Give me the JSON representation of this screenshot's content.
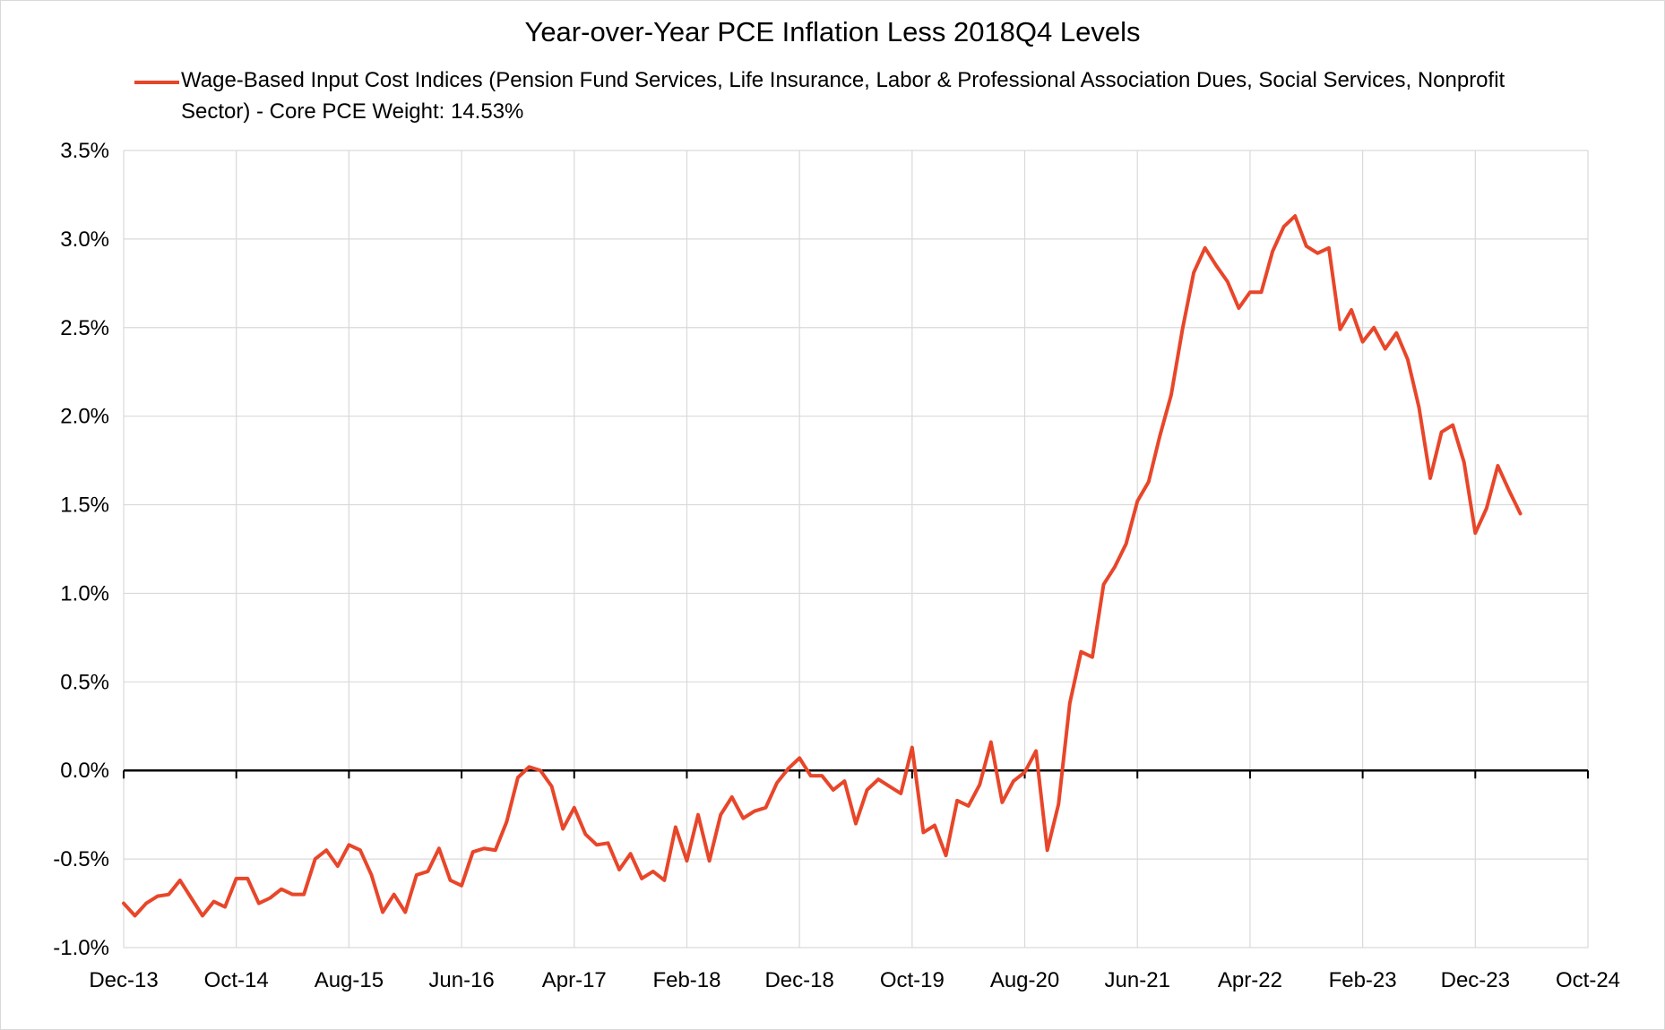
{
  "chart_data": {
    "type": "line",
    "title": "Year-over-Year PCE Inflation Less 2018Q4 Levels",
    "xlabel": "",
    "ylabel": "",
    "y_tick_labels": [
      "-1.0%",
      "-0.5%",
      "0.0%",
      "0.5%",
      "1.0%",
      "1.5%",
      "2.0%",
      "2.5%",
      "3.0%",
      "3.5%"
    ],
    "y_tick_values": [
      -1.0,
      -0.5,
      0.0,
      0.5,
      1.0,
      1.5,
      2.0,
      2.5,
      3.0,
      3.5
    ],
    "ylim": [
      -1.0,
      3.5
    ],
    "x_tick_labels": [
      "Dec-13",
      "Oct-14",
      "Aug-15",
      "Jun-16",
      "Apr-17",
      "Feb-18",
      "Dec-18",
      "Oct-19",
      "Aug-20",
      "Jun-21",
      "Apr-22",
      "Feb-23",
      "Dec-23",
      "Oct-24"
    ],
    "x_start_label": "Dec-13",
    "x_end_label": "Oct-24",
    "x_tick_interval_months": 10,
    "grid": true,
    "legend_position": "top",
    "series": [
      {
        "name": "Wage-Based Input Cost Indices (Pension Fund Services, Life Insurance, Labor & Professional Association Dues, Social Services, Nonprofit Sector) - Core PCE Weight: 14.53%",
        "color": "#e8462a",
        "values": [
          -0.75,
          -0.82,
          -0.75,
          -0.71,
          -0.7,
          -0.62,
          -0.72,
          -0.82,
          -0.74,
          -0.77,
          -0.61,
          -0.61,
          -0.75,
          -0.72,
          -0.67,
          -0.7,
          -0.7,
          -0.5,
          -0.45,
          -0.54,
          -0.42,
          -0.45,
          -0.59,
          -0.8,
          -0.7,
          -0.8,
          -0.59,
          -0.57,
          -0.44,
          -0.62,
          -0.65,
          -0.46,
          -0.44,
          -0.45,
          -0.29,
          -0.04,
          0.02,
          0.0,
          -0.09,
          -0.33,
          -0.21,
          -0.36,
          -0.42,
          -0.41,
          -0.56,
          -0.47,
          -0.61,
          -0.57,
          -0.62,
          -0.32,
          -0.51,
          -0.25,
          -0.51,
          -0.25,
          -0.15,
          -0.27,
          -0.23,
          -0.21,
          -0.07,
          0.01,
          0.07,
          -0.03,
          -0.03,
          -0.11,
          -0.06,
          -0.3,
          -0.11,
          -0.05,
          -0.09,
          -0.13,
          0.13,
          -0.35,
          -0.31,
          -0.48,
          -0.17,
          -0.2,
          -0.08,
          0.16,
          -0.18,
          -0.06,
          -0.01,
          0.11,
          -0.45,
          -0.19,
          0.38,
          0.67,
          0.64,
          1.05,
          1.15,
          1.28,
          1.52,
          1.63,
          1.89,
          2.12,
          2.49,
          2.81,
          2.95,
          2.85,
          2.76,
          2.61,
          2.7,
          2.7,
          2.93,
          3.07,
          3.13,
          2.96,
          2.92,
          2.95,
          2.49,
          2.6,
          2.42,
          2.5,
          2.38,
          2.47,
          2.32,
          2.05,
          1.65,
          1.91,
          1.95,
          1.74,
          1.34,
          1.48,
          1.72,
          1.58,
          1.45
        ]
      }
    ]
  }
}
